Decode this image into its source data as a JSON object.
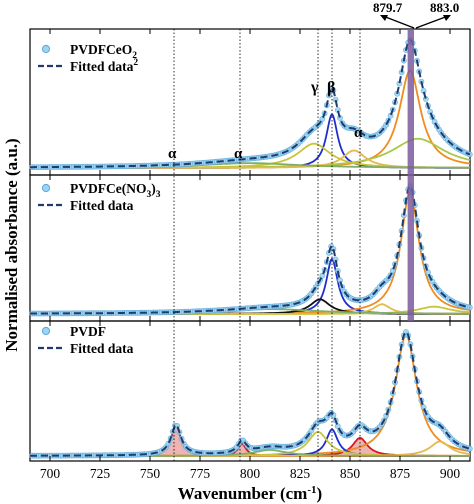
{
  "chart_data": [
    {
      "type": "line",
      "panel": "top",
      "series": [
        {
          "name": "PVDFCeO₂",
          "kind": "data"
        },
        {
          "name": "Fitted data₂",
          "kind": "fit"
        }
      ],
      "legend": {
        "data_label": "PVDFCeO",
        "data_sub": "2",
        "fit_label": "Fitted data",
        "fit_sub": "2"
      },
      "components": [
        {
          "center": 841,
          "width": 3.5,
          "amp": 0.55,
          "color": "#1f2fcf"
        },
        {
          "center": 880,
          "width": 6.5,
          "amp": 1.0,
          "color": "#f08c1f"
        },
        {
          "center": 884,
          "width": 16,
          "amp": 0.3,
          "color": "#a8c84a"
        },
        {
          "center": 832,
          "width": 10,
          "amp": 0.25,
          "color": "#c9c43a"
        },
        {
          "center": 852,
          "width": 7,
          "amp": 0.18,
          "color": "#e5b94a"
        },
        {
          "center": 800,
          "width": 30,
          "amp": 0.05,
          "color": "#7fb06a"
        }
      ],
      "annotations": [
        "α",
        "α",
        "γ",
        "β",
        "α"
      ],
      "top_labels": [
        "879.7",
        "883.0"
      ]
    },
    {
      "type": "line",
      "panel": "middle",
      "series": [
        {
          "name": "PVDFCe(NO₃)₃",
          "kind": "data"
        },
        {
          "name": "Fitted data",
          "kind": "fit"
        }
      ],
      "legend": {
        "data_label": "PVDFCe(NO",
        "data_sub1": "3",
        "data_mid": ")",
        "data_sub2": "3",
        "fit_label": "Fitted data"
      },
      "components": [
        {
          "center": 841,
          "width": 3.5,
          "amp": 0.45,
          "color": "#1f2fcf"
        },
        {
          "center": 880,
          "width": 5.5,
          "amp": 1.0,
          "color": "#f08c1f"
        },
        {
          "center": 835,
          "width": 6,
          "amp": 0.12,
          "color": "#111111"
        },
        {
          "center": 866,
          "width": 5,
          "amp": 0.08,
          "color": "#e5b94a"
        },
        {
          "center": 892,
          "width": 10,
          "amp": 0.06,
          "color": "#c9c43a"
        },
        {
          "center": 810,
          "width": 30,
          "amp": 0.04,
          "color": "#7fb06a"
        }
      ]
    },
    {
      "type": "line",
      "panel": "bottom",
      "series": [
        {
          "name": "PVDF",
          "kind": "data"
        },
        {
          "name": "Fitted data",
          "kind": "fit"
        }
      ],
      "legend": {
        "data_label": "PVDF",
        "fit_label": "Fitted data"
      },
      "components": [
        {
          "center": 763,
          "width": 3,
          "amp": 0.25,
          "color": "#d7191c",
          "fill": "#e89a9a"
        },
        {
          "center": 796,
          "width": 2.5,
          "amp": 0.1,
          "color": "#d7191c",
          "fill": "#e89a9a"
        },
        {
          "center": 855,
          "width": 4.5,
          "amp": 0.15,
          "color": "#d7191c",
          "fill": "#e89a9a"
        },
        {
          "center": 878,
          "width": 6.5,
          "amp": 1.0,
          "color": "#f08c1f"
        },
        {
          "center": 841,
          "width": 3.5,
          "amp": 0.22,
          "color": "#1f2fcf"
        },
        {
          "center": 834,
          "width": 6,
          "amp": 0.2,
          "color": "#c9c43a"
        },
        {
          "center": 895,
          "width": 6,
          "amp": 0.12,
          "color": "#e5b94a"
        },
        {
          "center": 810,
          "width": 10,
          "amp": 0.05,
          "color": "#7fb06a"
        }
      ]
    }
  ],
  "axes": {
    "xlabel": "Wavenumber (cm⁻¹)",
    "xlabel_main": "Wavenumber (cm",
    "xlabel_sup": "-1",
    "xlabel_end": ")",
    "ylabel": "Normalised absorbance (a.u.)",
    "xlim": [
      690,
      910
    ],
    "xticks": [
      "700",
      "725",
      "750",
      "775",
      "800",
      "825",
      "850",
      "875",
      "900"
    ],
    "reference_lines": [
      762,
      795,
      834,
      841,
      855
    ]
  },
  "colors": {
    "data_marker": "#9fd3f2",
    "data_edge": "#5aa9d8",
    "fit_line": "#1e3c6e",
    "highlight": "#7b5a9e"
  }
}
